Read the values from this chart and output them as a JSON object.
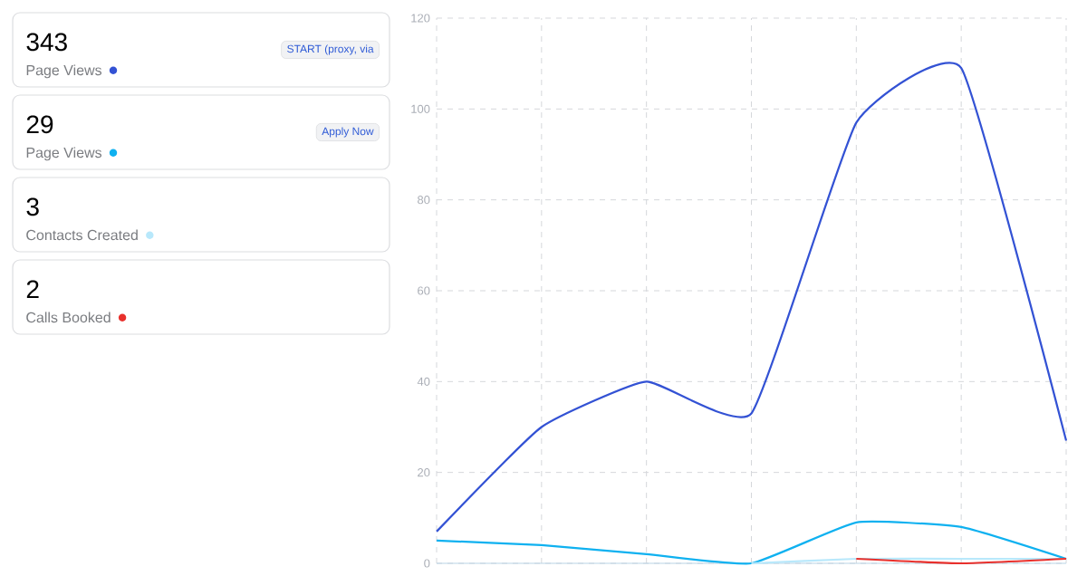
{
  "chart_data": [
    {
      "type": "other",
      "categories": [
        "Page Views",
        "Page Views",
        "Contacts Created",
        "Calls Booked"
      ],
      "value_labels": [
        "343",
        "29",
        "3",
        "2"
      ],
      "colors": [
        "#3352d4",
        "#0fb1f0",
        "#b8e8fb",
        "#e8302c"
      ],
      "annotations": [
        "START (proxy, via",
        "Apply Now"
      ]
    },
    {
      "type": "line",
      "categories": [
        null,
        null,
        null,
        null,
        null,
        null,
        null
      ],
      "ylim": [
        0,
        120
      ],
      "yticks": [
        0,
        20,
        40,
        60,
        80,
        100,
        120
      ],
      "grid": true,
      "tick_labels": "y",
      "series": [
        {
          "color": "#3352d4",
          "values": [
            7,
            30,
            40,
            33,
            97,
            109,
            27
          ]
        },
        {
          "color": "#0fb1f0",
          "values": [
            5,
            4,
            2,
            0,
            9,
            8,
            1
          ]
        },
        {
          "color": "#b8e8fb",
          "values": [
            null,
            null,
            null,
            0,
            1,
            1,
            1
          ]
        },
        {
          "color": "#e8302c",
          "values": [
            null,
            null,
            null,
            null,
            1,
            0,
            1
          ]
        }
      ]
    }
  ]
}
